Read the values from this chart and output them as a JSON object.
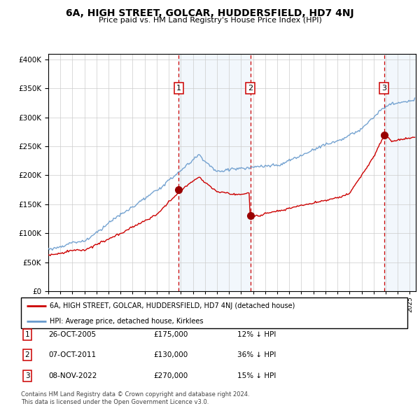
{
  "title": "6A, HIGH STREET, GOLCAR, HUDDERSFIELD, HD7 4NJ",
  "subtitle": "Price paid vs. HM Land Registry's House Price Index (HPI)",
  "legend_property": "6A, HIGH STREET, GOLCAR, HUDDERSFIELD, HD7 4NJ (detached house)",
  "legend_hpi": "HPI: Average price, detached house, Kirklees",
  "footer1": "Contains HM Land Registry data © Crown copyright and database right 2024.",
  "footer2": "This data is licensed under the Open Government Licence v3.0.",
  "transactions": [
    {
      "num": 1,
      "date": "26-OCT-2005",
      "price": "£175,000",
      "pct": "12% ↓ HPI",
      "year": 2005.82
    },
    {
      "num": 2,
      "date": "07-OCT-2011",
      "price": "£130,000",
      "pct": "36% ↓ HPI",
      "year": 2011.77
    },
    {
      "num": 3,
      "date": "08-NOV-2022",
      "price": "£270,000",
      "pct": "15% ↓ HPI",
      "year": 2022.86
    }
  ],
  "transaction_prices": [
    175000,
    130000,
    270000
  ],
  "property_color": "#cc0000",
  "hpi_color": "#6699cc",
  "vline_color": "#cc0000",
  "shade_color": "#ddeeff",
  "ylim": [
    0,
    410000
  ],
  "xlim_start": 1995.0,
  "xlim_end": 2025.5
}
